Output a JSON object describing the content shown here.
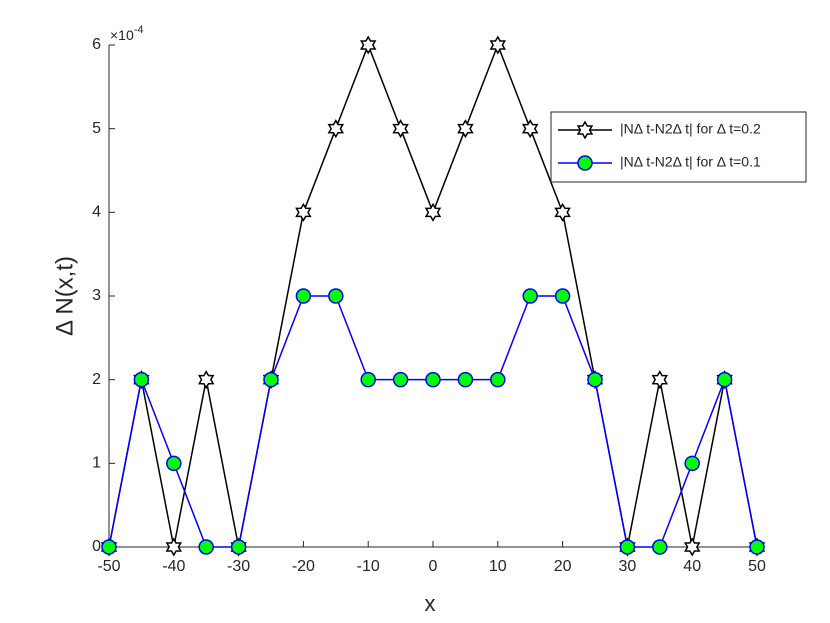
{
  "chart_data": {
    "type": "line",
    "xlabel": "x",
    "ylabel": "Δ N(x,t)",
    "y_multiplier": {
      "base": "×10",
      "exponent": "-4"
    },
    "x": [
      -50,
      -45,
      -40,
      -35,
      -30,
      -25,
      -20,
      -15,
      -10,
      -5,
      0,
      5,
      10,
      15,
      20,
      25,
      30,
      35,
      40,
      45,
      50
    ],
    "series": [
      {
        "name": "|NΔ t-N2Δ t| for Δ t=0.2",
        "color": "#000000",
        "marker": "hexagram",
        "marker_fill": "#ffffff",
        "values": [
          0,
          2,
          0,
          2,
          0,
          2,
          4,
          5,
          6,
          5,
          4,
          5,
          6,
          5,
          4,
          2,
          0,
          2,
          0,
          2,
          0
        ]
      },
      {
        "name": "|NΔ t-N2Δ t| for Δ t=0.1",
        "color": "#0000ff",
        "marker": "circle",
        "marker_fill": "#00ff00",
        "values": [
          0,
          2,
          1,
          0,
          0,
          2,
          3,
          3,
          2,
          2,
          2,
          2,
          2,
          3,
          3,
          2,
          0,
          0,
          1,
          2,
          0
        ]
      }
    ],
    "xlim": [
      -50,
      50
    ],
    "xticks": [
      -50,
      -40,
      -30,
      -20,
      -10,
      0,
      10,
      20,
      30,
      40,
      50
    ],
    "ylim": [
      0,
      6
    ],
    "yticks": [
      0,
      1,
      2,
      3,
      4,
      5,
      6
    ],
    "legend": "upper right"
  }
}
